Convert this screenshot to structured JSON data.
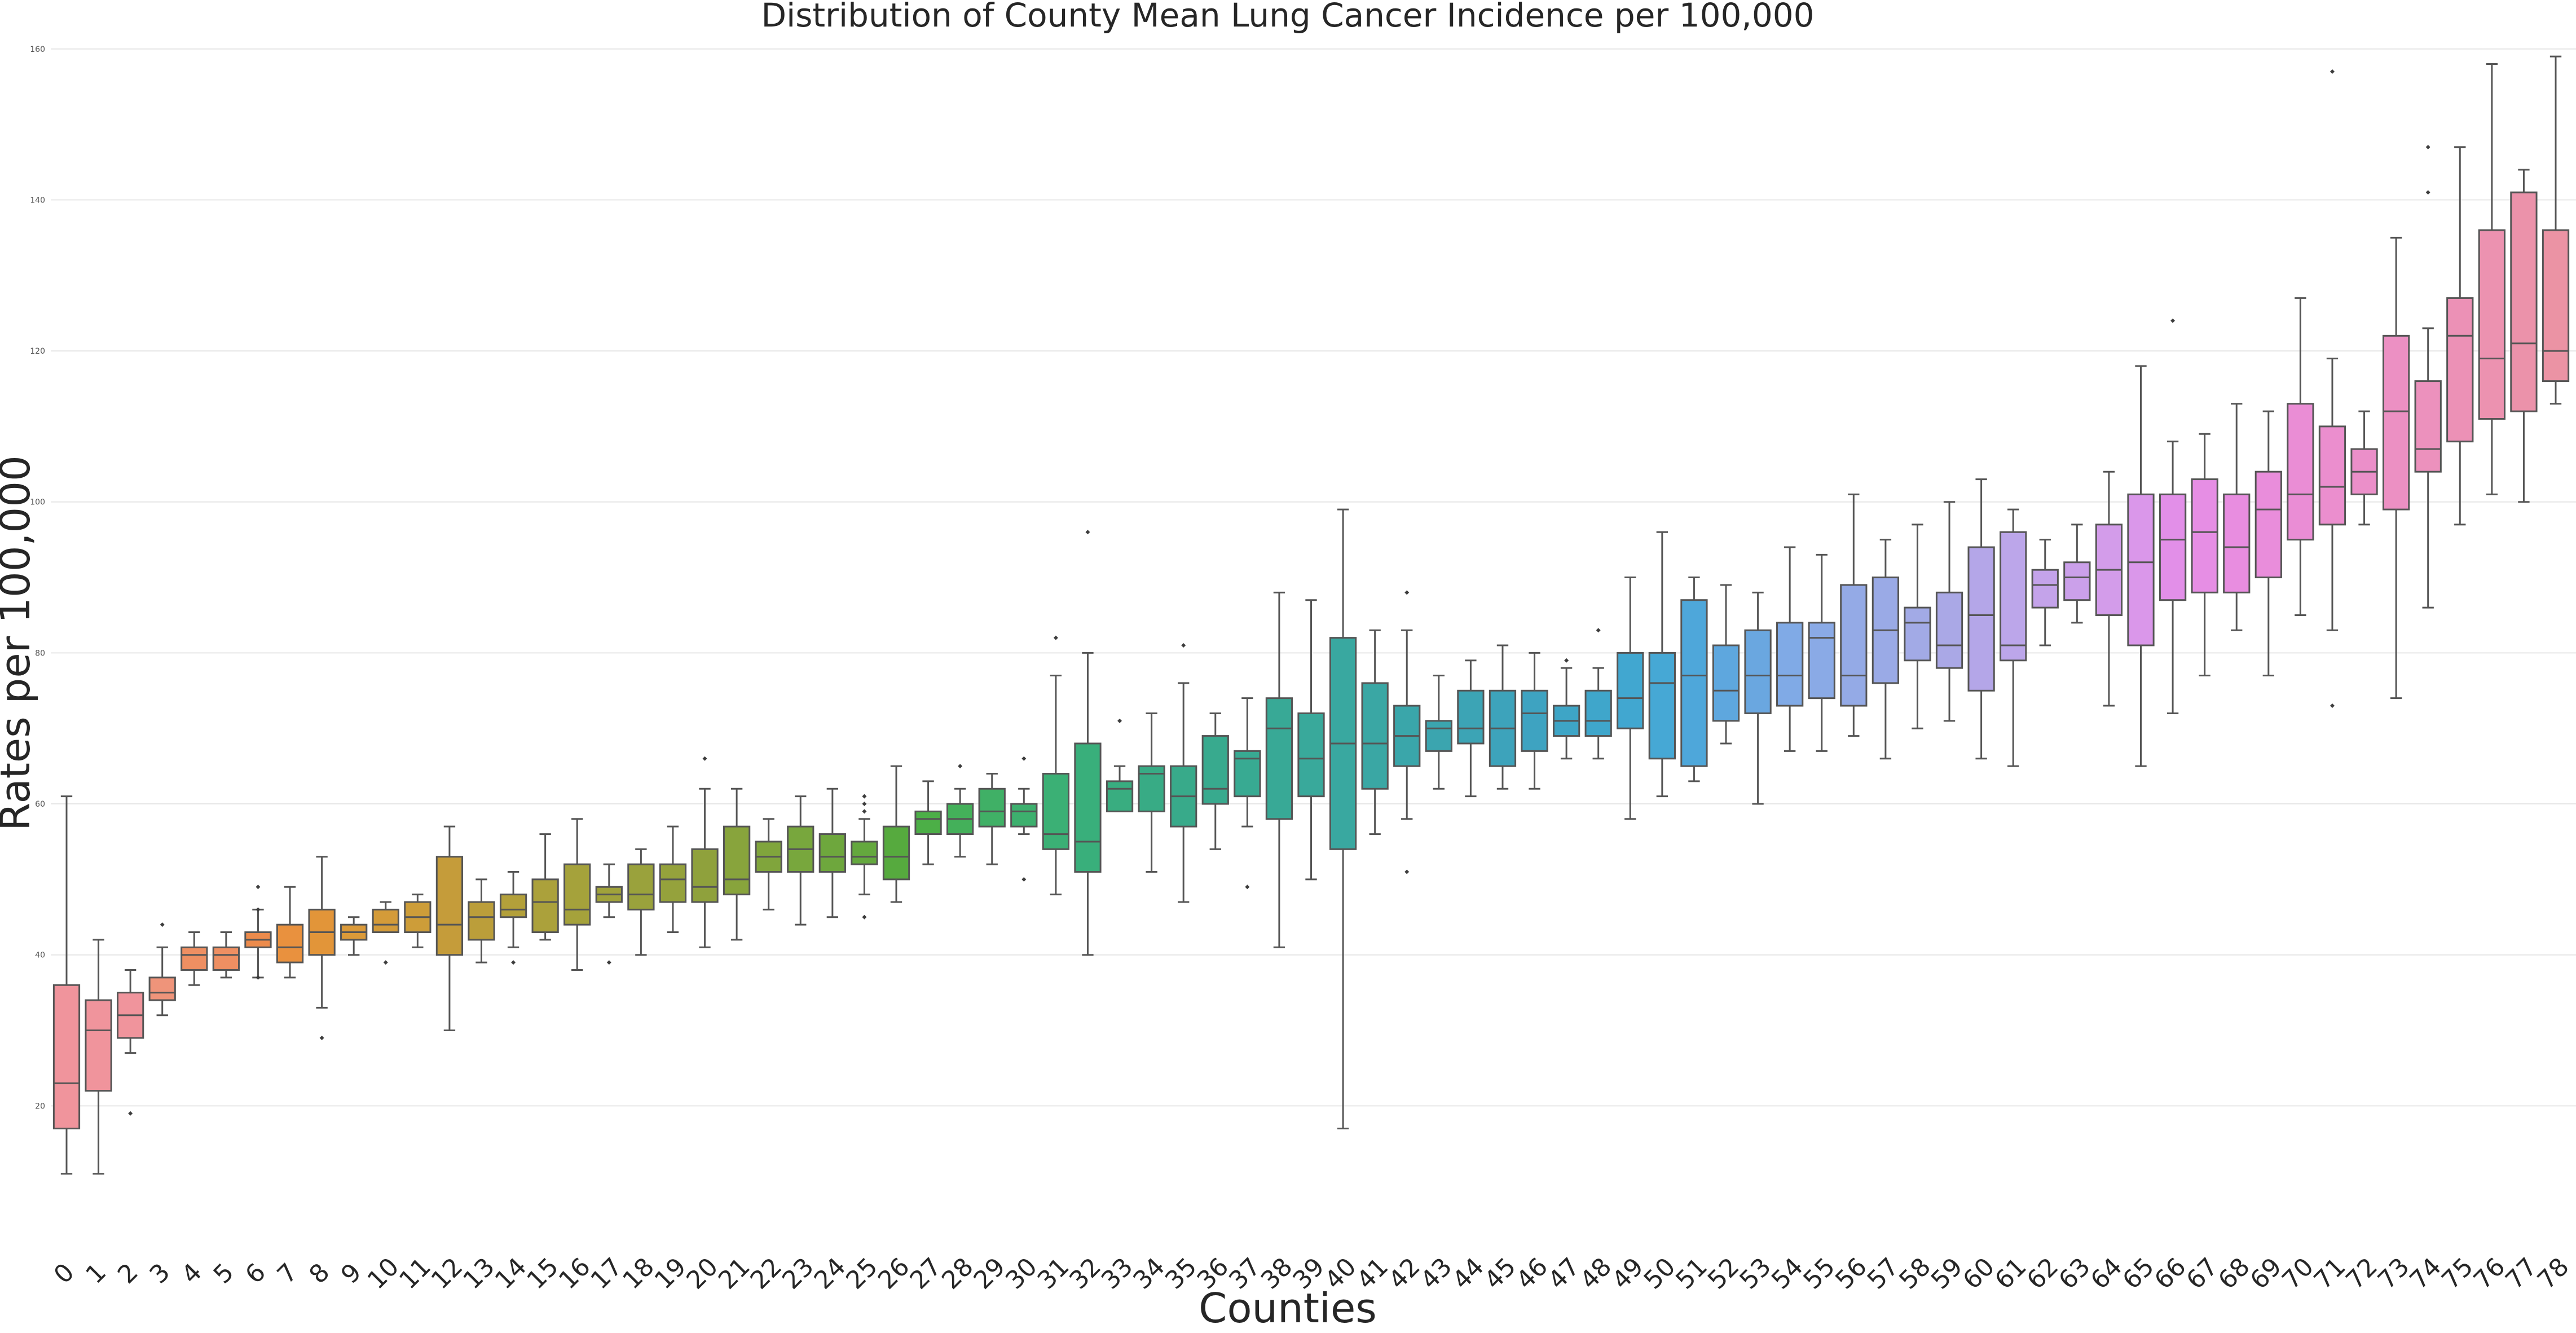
{
  "chart_data": {
    "type": "box",
    "title": "Distribution of County Mean Lung Cancer Incidence per 100,000",
    "xlabel": "Counties",
    "ylabel": "Rates per 100,000",
    "ylim": [
      0,
      162
    ],
    "y_ticks": [
      "20",
      "40",
      "60",
      "80",
      "100",
      "120",
      "140",
      "160"
    ],
    "grid": "horizontal",
    "categories": [
      "0",
      "1",
      "2",
      "3",
      "4",
      "5",
      "6",
      "7",
      "8",
      "9",
      "10",
      "11",
      "12",
      "13",
      "14",
      "15",
      "16",
      "17",
      "18",
      "19",
      "20",
      "21",
      "22",
      "23",
      "24",
      "25",
      "26",
      "27",
      "28",
      "29",
      "30",
      "31",
      "32",
      "33",
      "34",
      "35",
      "36",
      "37",
      "38",
      "39",
      "40",
      "41",
      "42",
      "43",
      "44",
      "45",
      "46",
      "47",
      "48",
      "49",
      "50",
      "51",
      "52",
      "53",
      "54",
      "55",
      "56",
      "57",
      "58",
      "59",
      "60",
      "61",
      "62",
      "63",
      "64",
      "65",
      "66",
      "67",
      "68",
      "69",
      "70",
      "71",
      "72",
      "73",
      "74",
      "75",
      "76",
      "77",
      "78"
    ],
    "boxes": [
      {
        "whisker_low": 11,
        "q1": 17,
        "median": 23,
        "q3": 36,
        "whisker_high": 61,
        "outliers": [],
        "color": "#f0949c"
      },
      {
        "whisker_low": 11,
        "q1": 22,
        "median": 30,
        "q3": 34,
        "whisker_high": 42,
        "outliers": [],
        "color": "#f0949c"
      },
      {
        "whisker_low": 27,
        "q1": 29,
        "median": 32,
        "q3": 35,
        "whisker_high": 38,
        "outliers": [
          19
        ],
        "color": "#f0949c"
      },
      {
        "whisker_low": 32,
        "q1": 34,
        "median": 35,
        "q3": 37,
        "whisker_high": 41,
        "outliers": [
          44
        ],
        "color": "#ef947a"
      },
      {
        "whisker_low": 36,
        "q1": 38,
        "median": 40,
        "q3": 41,
        "whisker_high": 43,
        "outliers": [],
        "color": "#ee8f62"
      },
      {
        "whisker_low": 37,
        "q1": 38,
        "median": 40,
        "q3": 41,
        "whisker_high": 43,
        "outliers": [],
        "color": "#ee8f62"
      },
      {
        "whisker_low": 37,
        "q1": 41,
        "median": 42,
        "q3": 43,
        "whisker_high": 46,
        "outliers": [
          49,
          46,
          37
        ],
        "color": "#ec8b4c"
      },
      {
        "whisker_low": 37,
        "q1": 39,
        "median": 41,
        "q3": 44,
        "whisker_high": 49,
        "outliers": [],
        "color": "#e9913e"
      },
      {
        "whisker_low": 33,
        "q1": 40,
        "median": 43,
        "q3": 46,
        "whisker_high": 53,
        "outliers": [
          29
        ],
        "color": "#e29539"
      },
      {
        "whisker_low": 40,
        "q1": 42,
        "median": 43,
        "q3": 44,
        "whisker_high": 45,
        "outliers": [],
        "color": "#db9a39"
      },
      {
        "whisker_low": 43,
        "q1": 43,
        "median": 44,
        "q3": 46,
        "whisker_high": 47,
        "outliers": [
          39
        ],
        "color": "#d49b39"
      },
      {
        "whisker_low": 41,
        "q1": 43,
        "median": 45,
        "q3": 47,
        "whisker_high": 48,
        "outliers": [],
        "color": "#cd9d39"
      },
      {
        "whisker_low": 30,
        "q1": 40,
        "median": 44,
        "q3": 53,
        "whisker_high": 57,
        "outliers": [],
        "color": "#c59c3a"
      },
      {
        "whisker_low": 39,
        "q1": 42,
        "median": 45,
        "q3": 47,
        "whisker_high": 50,
        "outliers": [],
        "color": "#bb9e3a"
      },
      {
        "whisker_low": 41,
        "q1": 45,
        "median": 46,
        "q3": 48,
        "whisker_high": 51,
        "outliers": [
          39
        ],
        "color": "#b3a03a"
      },
      {
        "whisker_low": 42,
        "q1": 43,
        "median": 47,
        "q3": 50,
        "whisker_high": 56,
        "outliers": [],
        "color": "#aba13b"
      },
      {
        "whisker_low": 38,
        "q1": 44,
        "median": 46,
        "q3": 52,
        "whisker_high": 58,
        "outliers": [],
        "color": "#a5a23b"
      },
      {
        "whisker_low": 45,
        "q1": 47,
        "median": 48,
        "q3": 49,
        "whisker_high": 52,
        "outliers": [
          39
        ],
        "color": "#a0a23b"
      },
      {
        "whisker_low": 40,
        "q1": 46,
        "median": 48,
        "q3": 52,
        "whisker_high": 54,
        "outliers": [],
        "color": "#9aa23c"
      },
      {
        "whisker_low": 43,
        "q1": 47,
        "median": 50,
        "q3": 52,
        "whisker_high": 57,
        "outliers": [],
        "color": "#95a23c"
      },
      {
        "whisker_low": 41,
        "q1": 47,
        "median": 49,
        "q3": 54,
        "whisker_high": 62,
        "outliers": [
          66
        ],
        "color": "#8fa13c"
      },
      {
        "whisker_low": 42,
        "q1": 48,
        "median": 50,
        "q3": 57,
        "whisker_high": 62,
        "outliers": [],
        "color": "#88a43c"
      },
      {
        "whisker_low": 46,
        "q1": 51,
        "median": 53,
        "q3": 55,
        "whisker_high": 58,
        "outliers": [],
        "color": "#80a53c"
      },
      {
        "whisker_low": 44,
        "q1": 51,
        "median": 54,
        "q3": 57,
        "whisker_high": 61,
        "outliers": [],
        "color": "#78a73d"
      },
      {
        "whisker_low": 45,
        "q1": 51,
        "median": 53,
        "q3": 56,
        "whisker_high": 62,
        "outliers": [],
        "color": "#6ea73d"
      },
      {
        "whisker_low": 48,
        "q1": 52,
        "median": 53,
        "q3": 55,
        "whisker_high": 58,
        "outliers": [
          59,
          60,
          61,
          45
        ],
        "color": "#64a83e"
      },
      {
        "whisker_low": 47,
        "q1": 50,
        "median": 53,
        "q3": 57,
        "whisker_high": 65,
        "outliers": [],
        "color": "#56aa3e"
      },
      {
        "whisker_low": 52,
        "q1": 56,
        "median": 58,
        "q3": 59,
        "whisker_high": 63,
        "outliers": [],
        "color": "#4caf47"
      },
      {
        "whisker_low": 53,
        "q1": 56,
        "median": 58,
        "q3": 60,
        "whisker_high": 62,
        "outliers": [
          65
        ],
        "color": "#44b05a"
      },
      {
        "whisker_low": 52,
        "q1": 57,
        "median": 59,
        "q3": 62,
        "whisker_high": 64,
        "outliers": [],
        "color": "#40b066"
      },
      {
        "whisker_low": 56,
        "q1": 57,
        "median": 59,
        "q3": 60,
        "whisker_high": 62,
        "outliers": [
          66,
          50
        ],
        "color": "#3db06e"
      },
      {
        "whisker_low": 48,
        "q1": 54,
        "median": 56,
        "q3": 64,
        "whisker_high": 77,
        "outliers": [
          82
        ],
        "color": "#3bb075"
      },
      {
        "whisker_low": 40,
        "q1": 51,
        "median": 55,
        "q3": 68,
        "whisker_high": 80,
        "outliers": [
          96
        ],
        "color": "#39af7b"
      },
      {
        "whisker_low": 59,
        "q1": 59,
        "median": 62,
        "q3": 63,
        "whisker_high": 65,
        "outliers": [
          71
        ],
        "color": "#39ad80"
      },
      {
        "whisker_low": 51,
        "q1": 59,
        "median": 64,
        "q3": 65,
        "whisker_high": 72,
        "outliers": [],
        "color": "#38ab85"
      },
      {
        "whisker_low": 47,
        "q1": 57,
        "median": 61,
        "q3": 65,
        "whisker_high": 76,
        "outliers": [
          81
        ],
        "color": "#38aa8a"
      },
      {
        "whisker_low": 54,
        "q1": 60,
        "median": 62,
        "q3": 69,
        "whisker_high": 72,
        "outliers": [],
        "color": "#38aa8e"
      },
      {
        "whisker_low": 57,
        "q1": 61,
        "median": 66,
        "q3": 67,
        "whisker_high": 74,
        "outliers": [
          49
        ],
        "color": "#38aa92"
      },
      {
        "whisker_low": 41,
        "q1": 58,
        "median": 70,
        "q3": 74,
        "whisker_high": 88,
        "outliers": [],
        "color": "#38a996"
      },
      {
        "whisker_low": 50,
        "q1": 61,
        "median": 66,
        "q3": 72,
        "whisker_high": 87,
        "outliers": [],
        "color": "#39a99b"
      },
      {
        "whisker_low": 17,
        "q1": 54,
        "median": 68,
        "q3": 82,
        "whisker_high": 99,
        "outliers": [],
        "color": "#39a8a0"
      },
      {
        "whisker_low": 56,
        "q1": 62,
        "median": 68,
        "q3": 76,
        "whisker_high": 83,
        "outliers": [],
        "color": "#3aa7a4"
      },
      {
        "whisker_low": 58,
        "q1": 65,
        "median": 69,
        "q3": 73,
        "whisker_high": 83,
        "outliers": [
          88,
          51
        ],
        "color": "#3aa6aa"
      },
      {
        "whisker_low": 62,
        "q1": 67,
        "median": 70,
        "q3": 71,
        "whisker_high": 77,
        "outliers": [],
        "color": "#3ba5af"
      },
      {
        "whisker_low": 61,
        "q1": 68,
        "median": 70,
        "q3": 75,
        "whisker_high": 79,
        "outliers": [],
        "color": "#3ca4b5"
      },
      {
        "whisker_low": 62,
        "q1": 65,
        "median": 70,
        "q3": 75,
        "whisker_high": 81,
        "outliers": [],
        "color": "#3da3bb"
      },
      {
        "whisker_low": 62,
        "q1": 67,
        "median": 72,
        "q3": 75,
        "whisker_high": 80,
        "outliers": [],
        "color": "#3ea3c1"
      },
      {
        "whisker_low": 66,
        "q1": 69,
        "median": 71,
        "q3": 73,
        "whisker_high": 78,
        "outliers": [
          79
        ],
        "color": "#3ea5c6"
      },
      {
        "whisker_low": 66,
        "q1": 69,
        "median": 71,
        "q3": 75,
        "whisker_high": 78,
        "outliers": [
          83
        ],
        "color": "#3fa6cb"
      },
      {
        "whisker_low": 58,
        "q1": 70,
        "median": 74,
        "q3": 80,
        "whisker_high": 90,
        "outliers": [],
        "color": "#41a7d0"
      },
      {
        "whisker_low": 61,
        "q1": 66,
        "median": 76,
        "q3": 80,
        "whisker_high": 96,
        "outliers": [],
        "color": "#46a8d5"
      },
      {
        "whisker_low": 63,
        "q1": 65,
        "median": 77,
        "q3": 87,
        "whisker_high": 90,
        "outliers": [],
        "color": "#4ea7da"
      },
      {
        "whisker_low": 68,
        "q1": 71,
        "median": 75,
        "q3": 81,
        "whisker_high": 89,
        "outliers": [],
        "color": "#5ea7de"
      },
      {
        "whisker_low": 60,
        "q1": 72,
        "median": 77,
        "q3": 83,
        "whisker_high": 88,
        "outliers": [],
        "color": "#6aa7e0"
      },
      {
        "whisker_low": 67,
        "q1": 73,
        "median": 77,
        "q3": 84,
        "whisker_high": 94,
        "outliers": [],
        "color": "#80aae6"
      },
      {
        "whisker_low": 67,
        "q1": 74,
        "median": 82,
        "q3": 84,
        "whisker_high": 93,
        "outliers": [],
        "color": "#8aaae6"
      },
      {
        "whisker_low": 69,
        "q1": 73,
        "median": 77,
        "q3": 89,
        "whisker_high": 101,
        "outliers": [],
        "color": "#94aae6"
      },
      {
        "whisker_low": 66,
        "q1": 76,
        "median": 83,
        "q3": 90,
        "whisker_high": 95,
        "outliers": [],
        "color": "#9aaae6"
      },
      {
        "whisker_low": 70,
        "q1": 79,
        "median": 84,
        "q3": 86,
        "whisker_high": 97,
        "outliers": [],
        "color": "#a2aae6"
      },
      {
        "whisker_low": 71,
        "q1": 78,
        "median": 81,
        "q3": 88,
        "whisker_high": 100,
        "outliers": [],
        "color": "#aaa8e6"
      },
      {
        "whisker_low": 66,
        "q1": 75,
        "median": 85,
        "q3": 94,
        "whisker_high": 103,
        "outliers": [],
        "color": "#b4a6e8"
      },
      {
        "whisker_low": 65,
        "q1": 79,
        "median": 81,
        "q3": 96,
        "whisker_high": 99,
        "outliers": [],
        "color": "#bca6ea"
      },
      {
        "whisker_low": 81,
        "q1": 86,
        "median": 89,
        "q3": 91,
        "whisker_high": 95,
        "outliers": [],
        "color": "#c4a3ea"
      },
      {
        "whisker_low": 84,
        "q1": 87,
        "median": 90,
        "q3": 92,
        "whisker_high": 97,
        "outliers": [],
        "color": "#cba0ea"
      },
      {
        "whisker_low": 73,
        "q1": 85,
        "median": 91,
        "q3": 97,
        "whisker_high": 104,
        "outliers": [],
        "color": "#d39cea"
      },
      {
        "whisker_low": 65,
        "q1": 81,
        "median": 92,
        "q3": 101,
        "whisker_high": 118,
        "outliers": [],
        "color": "#da97ea"
      },
      {
        "whisker_low": 72,
        "q1": 87,
        "median": 95,
        "q3": 101,
        "whisker_high": 108,
        "outliers": [
          124
        ],
        "color": "#e28fe8"
      },
      {
        "whisker_low": 77,
        "q1": 88,
        "median": 96,
        "q3": 103,
        "whisker_high": 109,
        "outliers": [],
        "color": "#e68ee4"
      },
      {
        "whisker_low": 83,
        "q1": 88,
        "median": 94,
        "q3": 101,
        "whisker_high": 113,
        "outliers": [],
        "color": "#e88de0"
      },
      {
        "whisker_low": 77,
        "q1": 90,
        "median": 99,
        "q3": 104,
        "whisker_high": 112,
        "outliers": [],
        "color": "#e98ddb"
      },
      {
        "whisker_low": 85,
        "q1": 95,
        "median": 101,
        "q3": 113,
        "whisker_high": 127,
        "outliers": [],
        "color": "#ea8dd5"
      },
      {
        "whisker_low": 83,
        "q1": 97,
        "median": 102,
        "q3": 110,
        "whisker_high": 119,
        "outliers": [
          73,
          157
        ],
        "color": "#eb8ece"
      },
      {
        "whisker_low": 97,
        "q1": 101,
        "median": 104,
        "q3": 107,
        "whisker_high": 112,
        "outliers": [],
        "color": "#eb8fc9"
      },
      {
        "whisker_low": 74,
        "q1": 99,
        "median": 112,
        "q3": 122,
        "whisker_high": 135,
        "outliers": [],
        "color": "#ec90c3"
      },
      {
        "whisker_low": 86,
        "q1": 104,
        "median": 107,
        "q3": 116,
        "whisker_high": 123,
        "outliers": [
          141,
          147
        ],
        "color": "#ec91bd"
      },
      {
        "whisker_low": 97,
        "q1": 108,
        "median": 122,
        "q3": 127,
        "whisker_high": 147,
        "outliers": [],
        "color": "#ec91b6"
      },
      {
        "whisker_low": 101,
        "q1": 111,
        "median": 119,
        "q3": 136,
        "whisker_high": 158,
        "outliers": [],
        "color": "#ec92b0"
      },
      {
        "whisker_low": 100,
        "q1": 112,
        "median": 121,
        "q3": 141,
        "whisker_high": 144,
        "outliers": [],
        "color": "#eb92aa"
      },
      {
        "whisker_low": 113,
        "q1": 116,
        "median": 120,
        "q3": 136,
        "whisker_high": 159,
        "outliers": [],
        "color": "#eb93a4"
      }
    ]
  }
}
